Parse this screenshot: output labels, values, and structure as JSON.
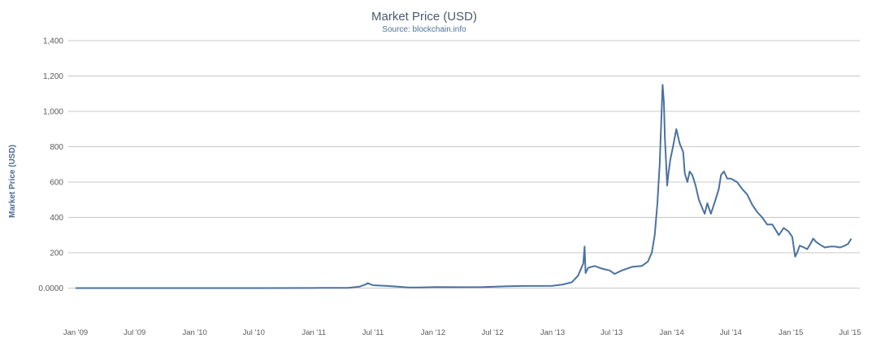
{
  "colors": {
    "line": "#4b72a0",
    "grid": "#c8c8c8"
  },
  "chart_data": {
    "type": "line",
    "title": "Market Price (USD)",
    "subtitle": "Source: blockchain.info",
    "xlabel": "",
    "ylabel": "Market Price (USD)",
    "ylim": [
      -200,
      1400
    ],
    "yticks": [
      {
        "value": 1400,
        "label": "1,400"
      },
      {
        "value": 1200,
        "label": "1,200"
      },
      {
        "value": 1000,
        "label": "1,000"
      },
      {
        "value": 800,
        "label": "800"
      },
      {
        "value": 600,
        "label": "600"
      },
      {
        "value": 400,
        "label": "400"
      },
      {
        "value": 200,
        "label": "200"
      },
      {
        "value": 0,
        "label": "0.0000"
      }
    ],
    "xlim": [
      "2009-01-01",
      "2015-07-01"
    ],
    "xticks": [
      {
        "date": "2009-01-01",
        "label": "Jan '09"
      },
      {
        "date": "2009-07-01",
        "label": "Jul '09"
      },
      {
        "date": "2010-01-01",
        "label": "Jan '10"
      },
      {
        "date": "2010-07-01",
        "label": "Jul '10"
      },
      {
        "date": "2011-01-01",
        "label": "Jan '11"
      },
      {
        "date": "2011-07-01",
        "label": "Jul '11"
      },
      {
        "date": "2012-01-01",
        "label": "Jan '12"
      },
      {
        "date": "2012-07-01",
        "label": "Jul '12"
      },
      {
        "date": "2013-01-01",
        "label": "Jan '13"
      },
      {
        "date": "2013-07-01",
        "label": "Jul '13"
      },
      {
        "date": "2014-01-01",
        "label": "Jan '14"
      },
      {
        "date": "2014-07-01",
        "label": "Jul '14"
      },
      {
        "date": "2015-01-01",
        "label": "Jan '15"
      },
      {
        "date": "2015-07-01",
        "label": "Jul '15"
      }
    ],
    "grid": true,
    "legend": "none",
    "series": [
      {
        "x": [
          "2009-01-01",
          "2010-07-15",
          "2011-02-01",
          "2011-04-15",
          "2011-05-20",
          "2011-06-08",
          "2011-06-15",
          "2011-07-01",
          "2011-08-15",
          "2011-10-15",
          "2011-11-20",
          "2012-01-10",
          "2012-03-15",
          "2012-06-01",
          "2012-08-15",
          "2012-10-01",
          "2012-12-31",
          "2013-02-01",
          "2013-03-01",
          "2013-03-20",
          "2013-04-05",
          "2013-04-09",
          "2013-04-12",
          "2013-04-20",
          "2013-05-10",
          "2013-05-20",
          "2013-06-05",
          "2013-06-25",
          "2013-07-10",
          "2013-08-01",
          "2013-09-01",
          "2013-10-01",
          "2013-10-20",
          "2013-11-01",
          "2013-11-10",
          "2013-11-18",
          "2013-11-25",
          "2013-12-01",
          "2013-12-04",
          "2013-12-08",
          "2013-12-11",
          "2013-12-15",
          "2013-12-18",
          "2013-12-22",
          "2013-12-28",
          "2014-01-05",
          "2014-01-15",
          "2014-01-25",
          "2014-02-05",
          "2014-02-10",
          "2014-02-18",
          "2014-02-25",
          "2014-03-05",
          "2014-03-15",
          "2014-03-25",
          "2014-04-05",
          "2014-04-12",
          "2014-04-20",
          "2014-05-01",
          "2014-05-15",
          "2014-05-25",
          "2014-06-01",
          "2014-06-10",
          "2014-06-20",
          "2014-07-01",
          "2014-07-20",
          "2014-08-05",
          "2014-08-20",
          "2014-09-05",
          "2014-09-20",
          "2014-10-05",
          "2014-10-20",
          "2014-11-05",
          "2014-11-15",
          "2014-11-25",
          "2014-12-10",
          "2014-12-25",
          "2015-01-05",
          "2015-01-14",
          "2015-01-20",
          "2015-01-28",
          "2015-02-10",
          "2015-02-20",
          "2015-03-05",
          "2015-03-10",
          "2015-03-20",
          "2015-04-01",
          "2015-04-15",
          "2015-05-01",
          "2015-05-15",
          "2015-06-01",
          "2015-06-15",
          "2015-06-25",
          "2015-07-05"
        ],
        "y": [
          0,
          0,
          1,
          1,
          8,
          20,
          28,
          16,
          12,
          4,
          3,
          6,
          5,
          6,
          10,
          12,
          13,
          20,
          33,
          70,
          140,
          235,
          85,
          115,
          125,
          118,
          108,
          100,
          80,
          100,
          120,
          125,
          150,
          200,
          300,
          480,
          700,
          1000,
          1150,
          1050,
          850,
          700,
          580,
          650,
          730,
          800,
          900,
          820,
          770,
          650,
          600,
          660,
          640,
          580,
          500,
          450,
          420,
          480,
          420,
          500,
          560,
          640,
          660,
          620,
          620,
          600,
          560,
          530,
          470,
          430,
          400,
          360,
          360,
          330,
          300,
          340,
          320,
          290,
          178,
          200,
          240,
          230,
          220,
          260,
          280,
          260,
          245,
          230,
          235,
          235,
          230,
          240,
          250,
          280
        ]
      }
    ]
  }
}
